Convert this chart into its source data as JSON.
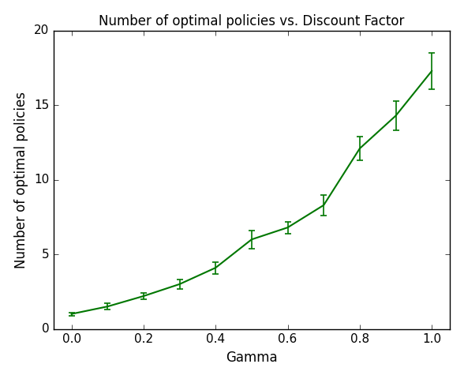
{
  "title": "Number of optimal policies vs. Discount Factor",
  "xlabel": "Gamma",
  "ylabel": "Number of optimal policies",
  "x": [
    0.0,
    0.1,
    0.2,
    0.3,
    0.4,
    0.5,
    0.6,
    0.7,
    0.8,
    0.9,
    1.0
  ],
  "y": [
    1.0,
    1.5,
    2.2,
    3.0,
    4.1,
    6.0,
    6.8,
    8.3,
    12.1,
    14.3,
    17.3
  ],
  "yerr": [
    0.1,
    0.2,
    0.2,
    0.3,
    0.4,
    0.6,
    0.4,
    0.7,
    0.8,
    1.0,
    1.2
  ],
  "line_color": "#007700",
  "ylim": [
    0,
    20
  ],
  "xlim": [
    -0.05,
    1.05
  ],
  "xticks": [
    0.0,
    0.2,
    0.4,
    0.6,
    0.8,
    1.0
  ],
  "yticks": [
    0,
    5,
    10,
    15,
    20
  ],
  "title_fontsize": 12,
  "label_fontsize": 12,
  "tick_fontsize": 11,
  "figsize": [
    5.88,
    4.8
  ],
  "dpi": 100
}
